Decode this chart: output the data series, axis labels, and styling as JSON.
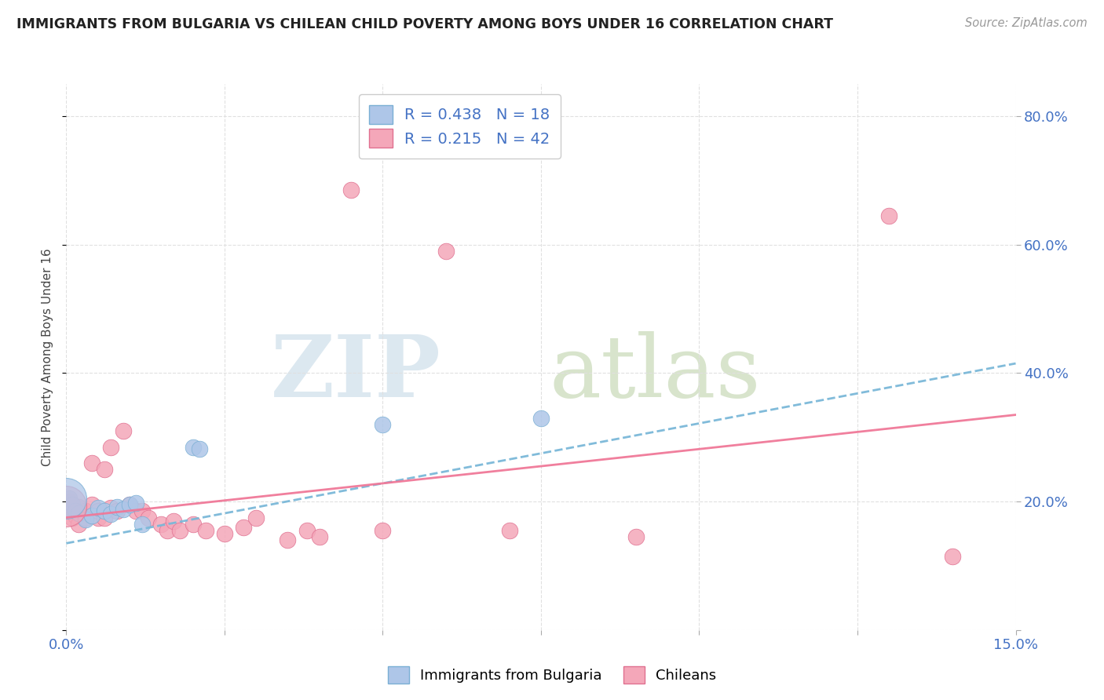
{
  "title": "IMMIGRANTS FROM BULGARIA VS CHILEAN CHILD POVERTY AMONG BOYS UNDER 16 CORRELATION CHART",
  "source": "Source: ZipAtlas.com",
  "ylabel": "Child Poverty Among Boys Under 16",
  "xlim": [
    0.0,
    0.15
  ],
  "ylim": [
    0.0,
    0.85
  ],
  "bulgaria_color": "#aec6e8",
  "bulgaria_edge": "#7aafd4",
  "chilean_color": "#f4a7b9",
  "chilean_edge": "#e07090",
  "line_bulgaria_color": "#7ab8d8",
  "line_chilean_color": "#f07898",
  "title_color": "#222222",
  "source_color": "#999999",
  "tick_color": "#4472c4",
  "axis_color": "#cccccc",
  "grid_color": "#e0e0e0",
  "watermark_zip_color": "#dce8f0",
  "watermark_atlas_color": "#d8e4cc",
  "legend_edge_color": "#cccccc",
  "legend_text_color": "#4472c4",
  "bulgaria_points": [
    [
      0.0005,
      0.205
    ],
    [
      0.001,
      0.195
    ],
    [
      0.0015,
      0.185
    ],
    [
      0.002,
      0.182
    ],
    [
      0.003,
      0.172
    ],
    [
      0.004,
      0.178
    ],
    [
      0.005,
      0.19
    ],
    [
      0.006,
      0.185
    ],
    [
      0.007,
      0.18
    ],
    [
      0.008,
      0.192
    ],
    [
      0.009,
      0.188
    ],
    [
      0.01,
      0.195
    ],
    [
      0.011,
      0.198
    ],
    [
      0.012,
      0.165
    ],
    [
      0.02,
      0.285
    ],
    [
      0.021,
      0.282
    ],
    [
      0.05,
      0.32
    ],
    [
      0.075,
      0.33
    ]
  ],
  "chilean_points": [
    [
      0.0002,
      0.195
    ],
    [
      0.0005,
      0.2
    ],
    [
      0.001,
      0.185
    ],
    [
      0.001,
      0.175
    ],
    [
      0.0015,
      0.178
    ],
    [
      0.002,
      0.192
    ],
    [
      0.002,
      0.165
    ],
    [
      0.003,
      0.185
    ],
    [
      0.003,
      0.175
    ],
    [
      0.004,
      0.195
    ],
    [
      0.004,
      0.26
    ],
    [
      0.005,
      0.175
    ],
    [
      0.005,
      0.185
    ],
    [
      0.006,
      0.175
    ],
    [
      0.006,
      0.25
    ],
    [
      0.007,
      0.19
    ],
    [
      0.007,
      0.285
    ],
    [
      0.008,
      0.185
    ],
    [
      0.009,
      0.31
    ],
    [
      0.01,
      0.195
    ],
    [
      0.011,
      0.185
    ],
    [
      0.012,
      0.185
    ],
    [
      0.013,
      0.175
    ],
    [
      0.015,
      0.165
    ],
    [
      0.016,
      0.155
    ],
    [
      0.017,
      0.17
    ],
    [
      0.018,
      0.155
    ],
    [
      0.02,
      0.165
    ],
    [
      0.022,
      0.155
    ],
    [
      0.025,
      0.15
    ],
    [
      0.028,
      0.16
    ],
    [
      0.03,
      0.175
    ],
    [
      0.035,
      0.14
    ],
    [
      0.038,
      0.155
    ],
    [
      0.04,
      0.145
    ],
    [
      0.045,
      0.685
    ],
    [
      0.05,
      0.155
    ],
    [
      0.06,
      0.59
    ],
    [
      0.07,
      0.155
    ],
    [
      0.09,
      0.145
    ],
    [
      0.13,
      0.645
    ],
    [
      0.14,
      0.115
    ]
  ],
  "big_cluster_bulgaria": [
    [
      0.0,
      0.205
    ]
  ],
  "big_cluster_chilean": [
    [
      0.0,
      0.195
    ]
  ],
  "b_trend_x0": 0.0,
  "b_trend_y0": 0.135,
  "b_trend_x1": 0.15,
  "b_trend_y1": 0.415,
  "c_trend_x0": 0.0,
  "c_trend_y0": 0.175,
  "c_trend_x1": 0.15,
  "c_trend_y1": 0.335
}
